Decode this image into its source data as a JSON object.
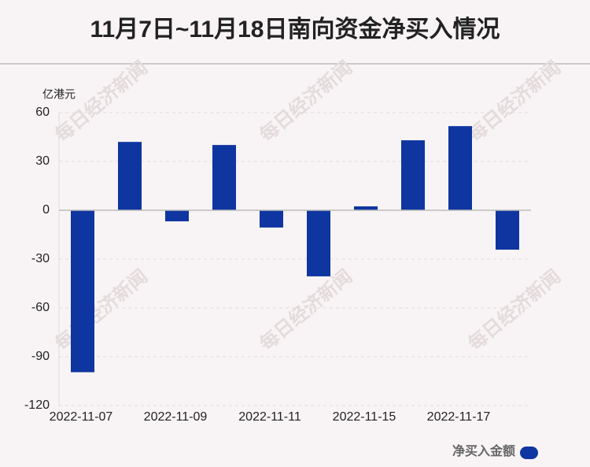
{
  "chart_data": {
    "type": "bar",
    "title": "11月7日~11月18日南向资金净买入情况",
    "y_unit": "亿港元",
    "watermark": "每日经济新闻",
    "categories": [
      "2022-11-07",
      null,
      "2022-11-09",
      null,
      "2022-11-11",
      null,
      "2022-11-15",
      null,
      "2022-11-17",
      null
    ],
    "series": [
      {
        "name": "净买入金额",
        "color": "#0e35a0",
        "values": [
          -99.5,
          42,
          -6.8,
          40.1,
          -10.6,
          -40.6,
          2.4,
          43,
          51.7,
          -24.2
        ]
      }
    ],
    "ylim": [
      -120,
      60
    ],
    "yticks": [
      60,
      30,
      0,
      -30,
      -60,
      -90,
      -120
    ],
    "grid": true,
    "legend": "bottom-right"
  }
}
